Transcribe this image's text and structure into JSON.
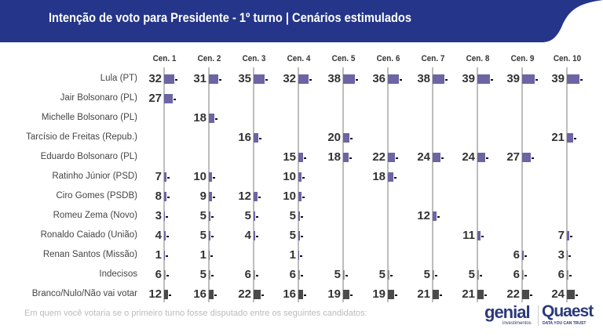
{
  "header": {
    "title": "Intenção de voto para Presidente - 1º turno | Cenários estimulados",
    "bg": "#24358a"
  },
  "footnote": "Em quem você votaria se o primeiro turno fosse disputado entre os seguintes candidatos:",
  "logos": {
    "genial": "genial",
    "genial_sub": "investimentos",
    "quaest": "Quaest",
    "quaest_sub": "DATA YOU CAN TRUST"
  },
  "colors": {
    "candidate": "#6b65a3",
    "other": "#4a4a4a"
  },
  "chart_data": {
    "type": "bar",
    "categories": [
      "Cen. 1",
      "Cen. 2",
      "Cen. 3",
      "Cen. 4",
      "Cen. 5",
      "Cen. 6",
      "Cen. 7",
      "Cen. 8",
      "Cen. 9",
      "Cen. 10"
    ],
    "series": [
      {
        "name": "Lula (PT)",
        "values": [
          32,
          31,
          35,
          32,
          38,
          36,
          38,
          39,
          39,
          39
        ]
      },
      {
        "name": "Jair Bolsonaro (PL)",
        "values": [
          27,
          null,
          null,
          null,
          null,
          null,
          null,
          null,
          null,
          null
        ]
      },
      {
        "name": "Michelle Bolsonaro (PL)",
        "values": [
          null,
          18,
          null,
          null,
          null,
          null,
          null,
          null,
          null,
          null
        ]
      },
      {
        "name": "Tarcísio de Freitas (Repub.)",
        "values": [
          null,
          null,
          16,
          null,
          20,
          null,
          null,
          null,
          null,
          21
        ]
      },
      {
        "name": "Eduardo Bolsonaro (PL)",
        "values": [
          null,
          null,
          null,
          15,
          18,
          22,
          24,
          24,
          27,
          null
        ]
      },
      {
        "name": "Ratinho Júnior (PSD)",
        "values": [
          7,
          10,
          null,
          10,
          null,
          18,
          null,
          null,
          null,
          null
        ]
      },
      {
        "name": "Ciro Gomes (PSDB)",
        "values": [
          8,
          9,
          12,
          10,
          null,
          null,
          null,
          null,
          null,
          null
        ]
      },
      {
        "name": "Romeu Zema (Novo)",
        "values": [
          3,
          5,
          5,
          5,
          null,
          null,
          12,
          null,
          null,
          null
        ]
      },
      {
        "name": "Ronaldo Caiado (União)",
        "values": [
          4,
          5,
          4,
          5,
          null,
          null,
          null,
          11,
          null,
          7
        ]
      },
      {
        "name": "Renan Santos (Missão)",
        "values": [
          1,
          1,
          null,
          1,
          null,
          null,
          null,
          null,
          6,
          3
        ]
      },
      {
        "name": "Indecisos",
        "values": [
          6,
          5,
          6,
          6,
          5,
          5,
          5,
          5,
          6,
          6
        ]
      },
      {
        "name": "Branco/Nulo/Não vai votar",
        "values": [
          12,
          16,
          22,
          16,
          19,
          19,
          21,
          21,
          22,
          24
        ]
      }
    ]
  }
}
